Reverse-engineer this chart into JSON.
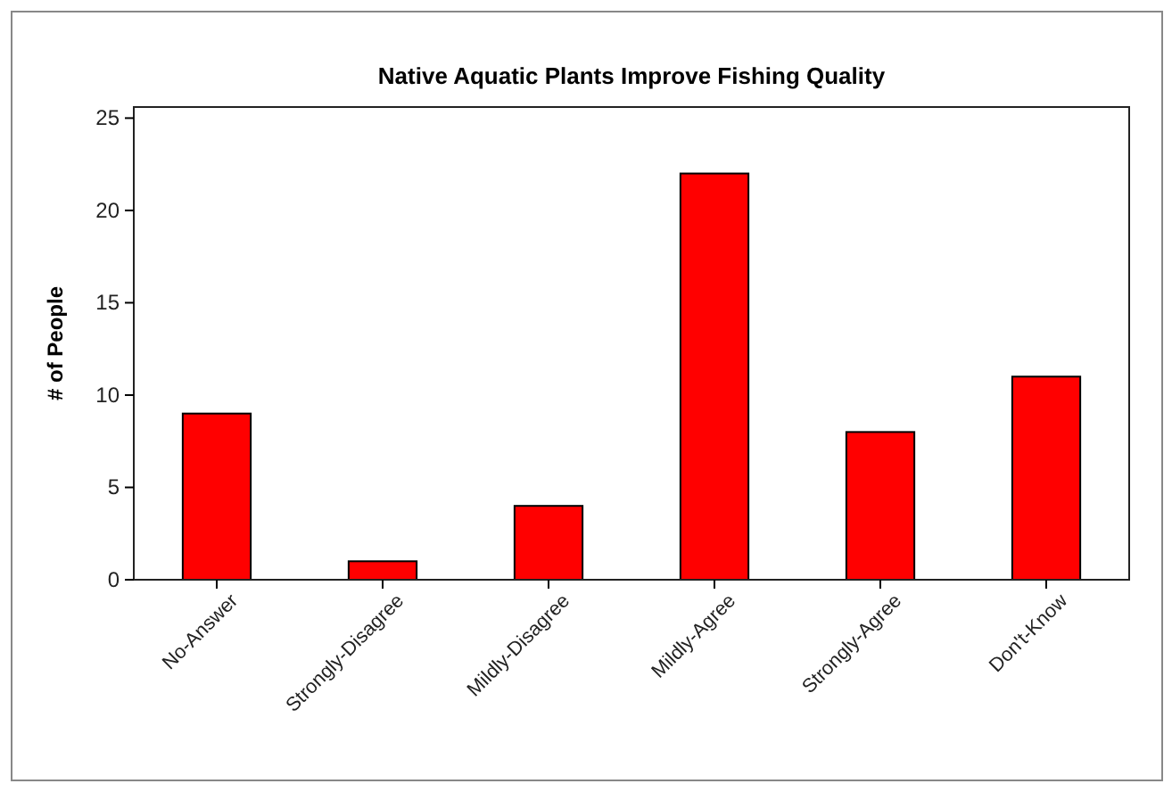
{
  "chart_data": {
    "type": "bar",
    "title": "Native Aquatic Plants Improve Fishing Quality",
    "ylabel": "# of People",
    "categories": [
      "No-Answer",
      "Strongly-Disagree",
      "Mildly-Disagree",
      "Mildly-Agree",
      "Strongly-Agree",
      "Don't-Know"
    ],
    "values": [
      9,
      1,
      4,
      22,
      8,
      11
    ],
    "color": "#ff0000",
    "ylim": [
      0,
      25.6
    ],
    "yticks": [
      0,
      5,
      10,
      15,
      20,
      25
    ],
    "grid": false
  }
}
